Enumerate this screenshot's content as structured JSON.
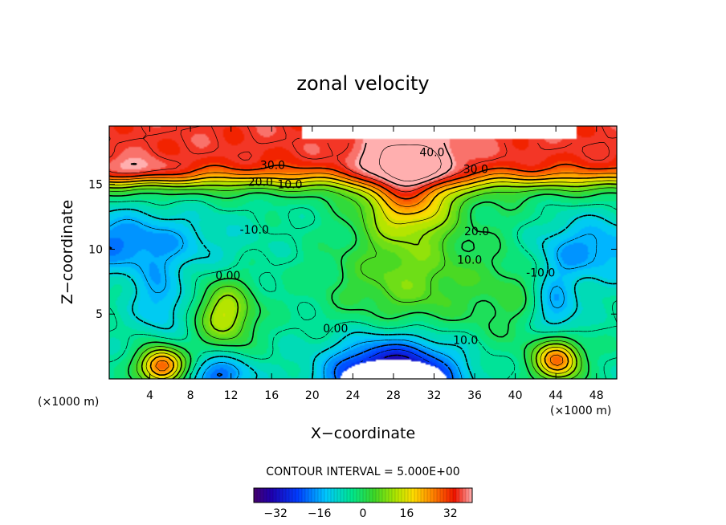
{
  "chart_data": {
    "type": "heatmap",
    "title": "zonal velocity",
    "xlabel": "X−coordinate",
    "ylabel": "Z−coordinate",
    "x_units": "(×1000 m)",
    "y_units": "(×1000 m)",
    "xlim": [
      0,
      50
    ],
    "ylim": [
      0,
      19.5
    ],
    "x_ticks": [
      4,
      8,
      12,
      16,
      20,
      24,
      28,
      32,
      36,
      40,
      44,
      48
    ],
    "y_ticks": [
      5,
      10,
      15
    ],
    "contour_interval_text": "CONTOUR INTERVAL = 5.000E+00",
    "contour_interval": 5.0,
    "colorbar": {
      "min": -40,
      "max": 40,
      "ticks": [
        -32,
        -16,
        0,
        16,
        32
      ]
    },
    "contour_labels": [
      {
        "text": "40.0",
        "x": 31.8,
        "y": 17.5
      },
      {
        "text": "30.0",
        "x": 16.1,
        "y": 16.5
      },
      {
        "text": "30.0",
        "x": 36.1,
        "y": 16.2
      },
      {
        "text": "20.0",
        "x": 14.9,
        "y": 15.2
      },
      {
        "text": "10.0",
        "x": 17.8,
        "y": 15.0
      },
      {
        "text": "20.0",
        "x": 36.2,
        "y": 11.4
      },
      {
        "text": "10.0",
        "x": 35.5,
        "y": 9.2
      },
      {
        "text": "-10.0",
        "x": 14.3,
        "y": 11.5
      },
      {
        "text": "-10.0",
        "x": 42.5,
        "y": 8.2
      },
      {
        "text": "0.00",
        "x": 11.7,
        "y": 8.0
      },
      {
        "text": "0.00",
        "x": 22.3,
        "y": 3.9
      },
      {
        "text": "10.0",
        "x": 35.1,
        "y": 3.0
      }
    ],
    "features": [
      {
        "type": "jet",
        "x": 29.5,
        "z": 14.5,
        "peak": 40
      },
      {
        "type": "jet",
        "x": 24,
        "z": 18.3,
        "peak": 36
      },
      {
        "type": "negative",
        "x": 28,
        "z": 0,
        "peak": -38
      },
      {
        "type": "negative",
        "x": 1,
        "z": 10.5,
        "peak": -16
      },
      {
        "type": "negative",
        "x": 46.5,
        "z": 10,
        "peak": -16
      },
      {
        "type": "negative",
        "x": 5,
        "z": 6,
        "peak": -13
      },
      {
        "type": "negative",
        "x": 44,
        "z": 5.5,
        "peak": -15
      },
      {
        "type": "negative",
        "x": 11,
        "z": 0.3,
        "peak": -18
      },
      {
        "type": "positive",
        "x": 5.2,
        "z": 1,
        "peak": 32
      },
      {
        "type": "positive",
        "x": 44.2,
        "z": 1.5,
        "peak": 28
      },
      {
        "type": "positive",
        "x": 11.5,
        "z": 5,
        "peak": 14
      },
      {
        "type": "blank",
        "x": 20,
        "z": 19,
        "note": "missing region"
      },
      {
        "type": "blank",
        "x": 28,
        "z": 0.5,
        "note": "missing region"
      }
    ]
  }
}
